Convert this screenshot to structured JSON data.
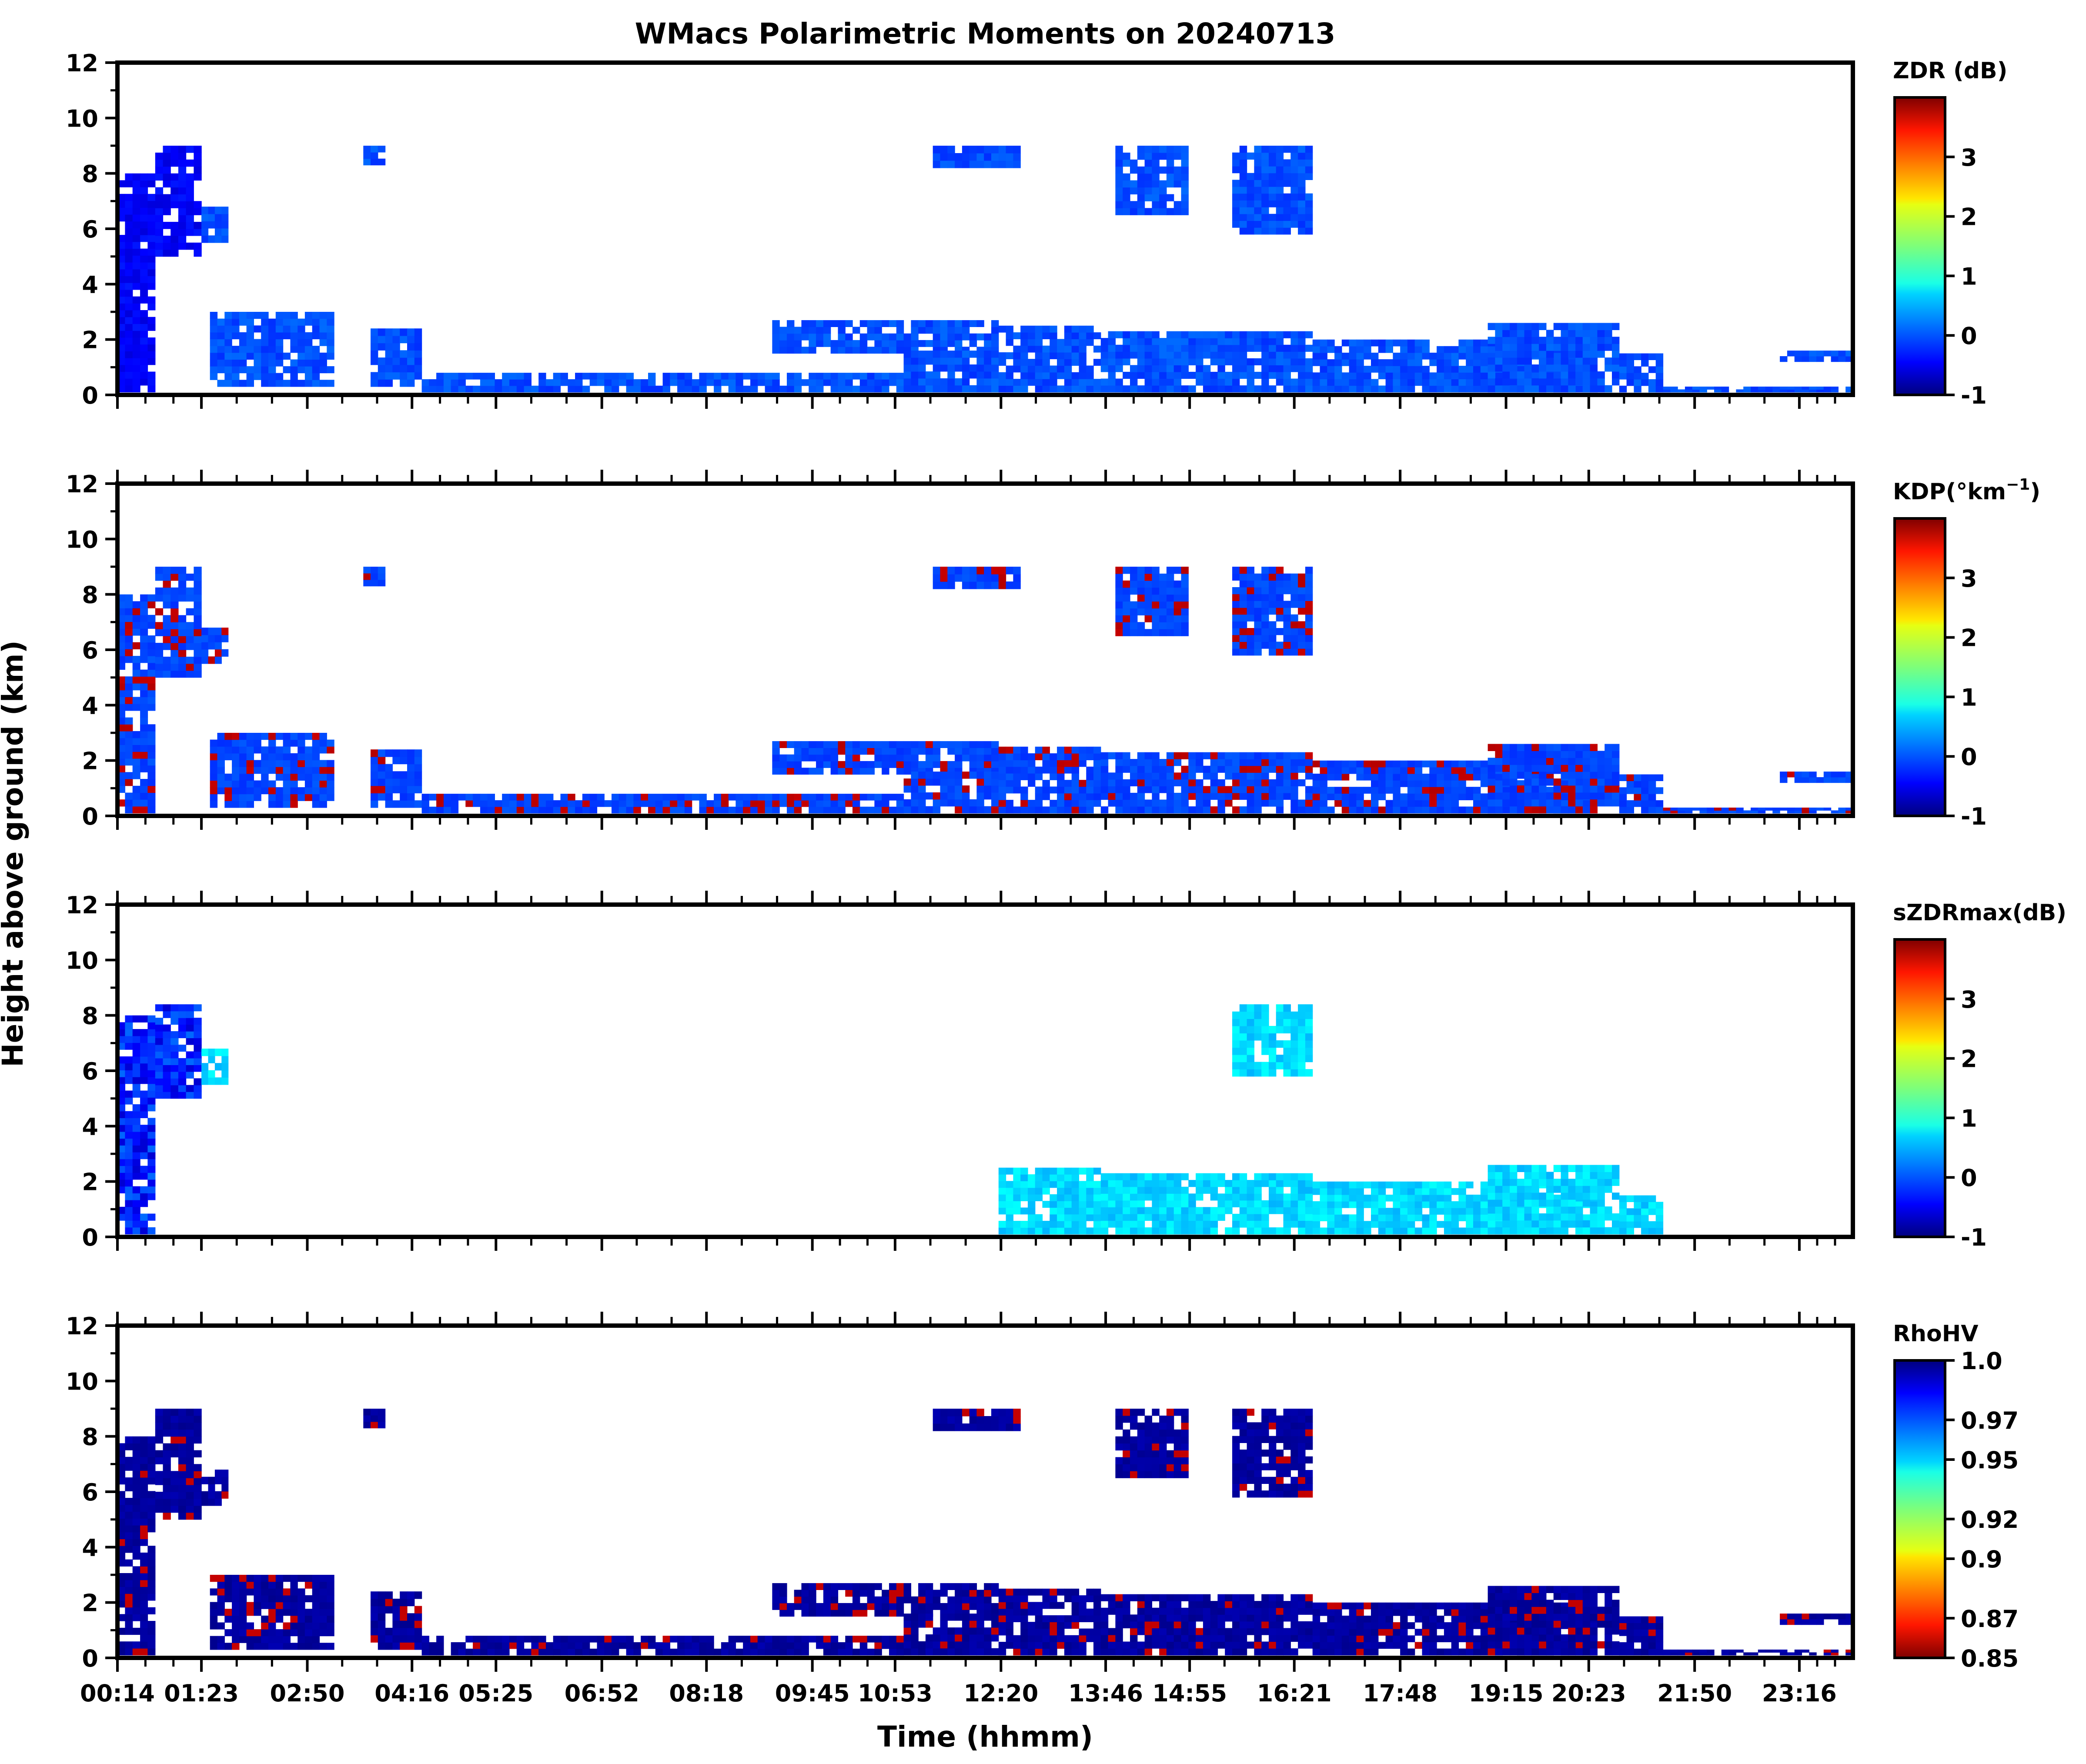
{
  "figure": {
    "title": "WMacs Polarimetric Moments on 20240713",
    "ylabel": "Height above ground (km)",
    "xlabel": "Time (hhmm)"
  },
  "chart_data": {
    "type": "heatmap",
    "x_tick_labels": [
      "00:14",
      "01:23",
      "02:50",
      "04:16",
      "05:25",
      "06:52",
      "08:18",
      "09:45",
      "10:53",
      "12:20",
      "13:46",
      "14:55",
      "16:21",
      "17:48",
      "19:15",
      "20:23",
      "21:50",
      "23:16"
    ],
    "x_tick_hours": [
      0.233,
      1.383,
      2.833,
      4.267,
      5.417,
      6.867,
      8.3,
      9.75,
      10.883,
      12.333,
      13.767,
      14.917,
      16.35,
      17.8,
      19.25,
      20.383,
      21.833,
      23.267
    ],
    "xlim_hours": [
      0.233,
      24.0
    ],
    "ylim": [
      0,
      12
    ],
    "y_ticks": [
      0,
      2,
      4,
      6,
      8,
      10,
      12
    ],
    "grid": false,
    "panels": [
      {
        "id": "zdr",
        "colorbar_label": "ZDR (dB)",
        "colormap": "jet",
        "clim": [
          -1,
          4
        ],
        "colorbar_ticks": [
          {
            "value": 3,
            "label": "3"
          },
          {
            "value": 2,
            "label": "2"
          },
          {
            "value": 1,
            "label": "1"
          },
          {
            "value": 0,
            "label": "0"
          },
          {
            "value": -1,
            "label": "-1"
          }
        ]
      },
      {
        "id": "kdp",
        "colorbar_label": "KDP(°km",
        "colorbar_label_sup": "−1",
        "colorbar_label_end": ")",
        "colormap": "jet",
        "clim": [
          -1,
          4
        ],
        "colorbar_ticks": [
          {
            "value": 3,
            "label": "3"
          },
          {
            "value": 2,
            "label": "2"
          },
          {
            "value": 1,
            "label": "1"
          },
          {
            "value": 0,
            "label": "0"
          },
          {
            "value": -1,
            "label": "-1"
          }
        ]
      },
      {
        "id": "szdrmax",
        "colorbar_label": "sZDRmax(dB)",
        "colormap": "jet",
        "clim": [
          -1,
          4
        ],
        "colorbar_ticks": [
          {
            "value": 3,
            "label": "3"
          },
          {
            "value": 2,
            "label": "2"
          },
          {
            "value": 1,
            "label": "1"
          },
          {
            "value": 0,
            "label": "0"
          },
          {
            "value": -1,
            "label": "-1"
          }
        ]
      },
      {
        "id": "rhohv",
        "colorbar_label": "RhoHV",
        "colormap": "jet_r",
        "clim": [
          0.85,
          1.0
        ],
        "colorbar_ticks": [
          {
            "value": 1.0,
            "label": "1.0"
          },
          {
            "value": 0.97,
            "label": "0.97"
          },
          {
            "value": 0.95,
            "label": "0.95"
          },
          {
            "value": 0.92,
            "label": "0.92"
          },
          {
            "value": 0.9,
            "label": "0.9"
          },
          {
            "value": 0.87,
            "label": "0.87"
          },
          {
            "value": 0.85,
            "label": "0.85"
          }
        ]
      }
    ],
    "echo_regions": [
      {
        "t": [
          0.233,
          0.75
        ],
        "h": [
          0.1,
          8.0
        ]
      },
      {
        "t": [
          0.75,
          1.383
        ],
        "h": [
          5.0,
          9.0
        ]
      },
      {
        "t": [
          1.383,
          1.75
        ],
        "h": [
          5.5,
          6.8
        ]
      },
      {
        "t": [
          1.5,
          3.2
        ],
        "h": [
          0.3,
          3.0
        ]
      },
      {
        "t": [
          3.6,
          3.9
        ],
        "h": [
          8.3,
          9.0
        ]
      },
      {
        "t": [
          3.7,
          4.4
        ],
        "h": [
          0.3,
          2.4
        ]
      },
      {
        "t": [
          4.4,
          11.0
        ],
        "h": [
          0.1,
          0.8
        ]
      },
      {
        "t": [
          9.2,
          12.3
        ],
        "h": [
          1.5,
          2.7
        ]
      },
      {
        "t": [
          11.0,
          12.3
        ],
        "h": [
          0.1,
          1.6
        ]
      },
      {
        "t": [
          11.4,
          12.6
        ],
        "h": [
          8.2,
          9.0
        ]
      },
      {
        "t": [
          12.3,
          13.7
        ],
        "h": [
          0.1,
          2.5
        ]
      },
      {
        "t": [
          13.7,
          16.6
        ],
        "h": [
          0.1,
          2.3
        ]
      },
      {
        "t": [
          13.9,
          14.9
        ],
        "h": [
          6.5,
          9.0
        ]
      },
      {
        "t": [
          15.5,
          16.6
        ],
        "h": [
          5.8,
          9.0
        ]
      },
      {
        "t": [
          16.6,
          20.5
        ],
        "h": [
          0.1,
          2.0
        ]
      },
      {
        "t": [
          19.0,
          20.8
        ],
        "h": [
          0.1,
          2.6
        ]
      },
      {
        "t": [
          20.8,
          21.4
        ],
        "h": [
          0.1,
          1.5
        ]
      },
      {
        "t": [
          21.4,
          24.0
        ],
        "h": [
          0.1,
          0.3
        ]
      },
      {
        "t": [
          23.0,
          24.0
        ],
        "h": [
          1.2,
          1.6
        ]
      }
    ]
  }
}
